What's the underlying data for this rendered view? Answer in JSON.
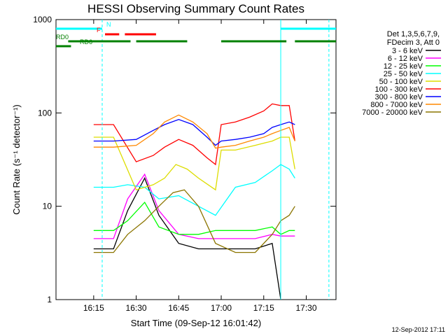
{
  "chart_data": {
    "type": "line",
    "title": "HESSI Observing Summary Count Rates",
    "xlabel": "Start Time (09-Sep-12 16:01:42)",
    "ylabel": "Count Rate (s⁻¹ detector⁻¹)",
    "yscale": "log",
    "ylim": [
      1,
      1000
    ],
    "xlim": [
      "16:01:42",
      "17:40:30"
    ],
    "x_ticks": [
      "16:15",
      "16:30",
      "16:45",
      "17:00",
      "17:15",
      "17:30"
    ],
    "y_ticks": [
      "1",
      "10",
      "100",
      "1000"
    ],
    "grid": false,
    "legend_position": "right",
    "legend_header": [
      "Det 1,3,5,6,7,9,",
      "FDecim 3, Att 0"
    ],
    "footer_timestamp": "12-Sep-2012 17:11",
    "series": [
      {
        "name": "3 - 6 keV",
        "color": "#000000",
        "x": [
          "16:15",
          "16:22",
          "16:27",
          "16:33",
          "16:38",
          "16:45",
          "16:52",
          "16:58",
          "17:05",
          "17:12",
          "17:18",
          "17:21"
        ],
        "values": [
          3.5,
          3.5,
          9,
          20,
          8,
          4,
          3.5,
          3.5,
          3.5,
          3.5,
          4,
          1
        ]
      },
      {
        "name": "6 - 12 keV",
        "color": "#ff00ff",
        "x": [
          "16:15",
          "16:22",
          "16:27",
          "16:33",
          "16:38",
          "16:45",
          "16:52",
          "16:58",
          "17:05",
          "17:12",
          "17:18",
          "17:21",
          "17:24",
          "17:26"
        ],
        "values": [
          4.5,
          4.5,
          12,
          22,
          9,
          5,
          4.5,
          4.5,
          4.5,
          4.5,
          5,
          4.8,
          4.8,
          4.8
        ]
      },
      {
        "name": "12 - 25 keV",
        "color": "#00ff00",
        "x": [
          "16:15",
          "16:22",
          "16:27",
          "16:33",
          "16:38",
          "16:45",
          "16:52",
          "16:58",
          "17:05",
          "17:12",
          "17:18",
          "17:21",
          "17:24",
          "17:26"
        ],
        "values": [
          5.5,
          5.5,
          7,
          11,
          6,
          5,
          5,
          5.5,
          5.5,
          5.5,
          6,
          5,
          5.5,
          5.5
        ]
      },
      {
        "name": "25 - 50 keV",
        "color": "#00ffff",
        "x": [
          "16:15",
          "16:22",
          "16:27",
          "16:33",
          "16:38",
          "16:45",
          "16:52",
          "16:58",
          "17:05",
          "17:12",
          "17:18",
          "17:21",
          "17:24",
          "17:26"
        ],
        "values": [
          16,
          16,
          17,
          16,
          12,
          13,
          10,
          8,
          16,
          18,
          24,
          28,
          25,
          20
        ]
      },
      {
        "name": "50 - 100 keV",
        "color": "#dddd00",
        "x": [
          "16:15",
          "16:22",
          "16:30",
          "16:36",
          "16:40",
          "16:44",
          "16:48",
          "16:52",
          "16:58",
          "17:00",
          "17:05",
          "17:12",
          "17:18",
          "17:21",
          "17:24",
          "17:26"
        ],
        "values": [
          55,
          55,
          15,
          17,
          20,
          28,
          25,
          20,
          15,
          40,
          40,
          45,
          50,
          55,
          55,
          25
        ]
      },
      {
        "name": "100 - 300 keV",
        "color": "#ff0000",
        "x": [
          "16:15",
          "16:22",
          "16:30",
          "16:36",
          "16:40",
          "16:45",
          "16:50",
          "16:55",
          "16:58",
          "17:00",
          "17:05",
          "17:10",
          "17:15",
          "17:18",
          "17:21",
          "17:24",
          "17:26"
        ],
        "values": [
          75,
          75,
          30,
          35,
          43,
          52,
          45,
          33,
          28,
          75,
          80,
          90,
          105,
          125,
          120,
          120,
          50
        ]
      },
      {
        "name": "300 - 800 keV",
        "color": "#0000ff",
        "x": [
          "16:15",
          "16:22",
          "16:30",
          "16:36",
          "16:40",
          "16:45",
          "16:50",
          "16:55",
          "16:58",
          "17:00",
          "17:05",
          "17:10",
          "17:15",
          "17:18",
          "17:21",
          "17:24",
          "17:26"
        ],
        "values": [
          50,
          50,
          52,
          65,
          75,
          85,
          75,
          55,
          45,
          50,
          52,
          55,
          60,
          70,
          75,
          80,
          75
        ]
      },
      {
        "name": "800 - 7000 keV",
        "color": "#ff8800",
        "x": [
          "16:15",
          "16:22",
          "16:30",
          "16:36",
          "16:40",
          "16:45",
          "16:50",
          "16:55",
          "16:58",
          "17:00",
          "17:05",
          "17:10",
          "17:15",
          "17:18",
          "17:21",
          "17:24",
          "17:26"
        ],
        "values": [
          43,
          43,
          45,
          60,
          80,
          95,
          80,
          60,
          42,
          43,
          45,
          50,
          55,
          60,
          65,
          70,
          50
        ]
      },
      {
        "name": "7000 - 20000 keV",
        "color": "#8b7500",
        "x": [
          "16:15",
          "16:22",
          "16:27",
          "16:33",
          "16:38",
          "16:43",
          "16:47",
          "16:52",
          "16:58",
          "17:05",
          "17:12",
          "17:18",
          "17:21",
          "17:24",
          "17:26"
        ],
        "values": [
          3.2,
          3.2,
          5,
          7,
          10,
          14,
          15,
          10,
          4,
          3.2,
          3.2,
          5,
          7,
          8,
          10
        ]
      }
    ],
    "flag_bands": [
      {
        "label": "N",
        "color": "#00ffff",
        "segments": [
          [
            "16:01:42",
            "16:18"
          ],
          [
            "17:21",
            "17:40:30"
          ]
        ]
      },
      {
        "label": "F",
        "color": "#ff0000",
        "segments": [
          [
            "16:19",
            "16:24"
          ],
          [
            "16:26",
            "16:37"
          ]
        ]
      },
      {
        "label": "RD0",
        "color": "#008000",
        "segments": [
          [
            "16:06",
            "16:28"
          ],
          [
            "16:30",
            "16:48"
          ],
          [
            "17:00",
            "17:23"
          ],
          [
            "17:26",
            "17:40:30"
          ]
        ]
      },
      {
        "label": "RD6",
        "color": "#008000",
        "segments": [
          [
            "16:01:42",
            "16:07"
          ]
        ]
      }
    ],
    "vertical_markers": [
      {
        "x": "16:18",
        "color": "#00ffff",
        "style": "dashed"
      },
      {
        "x": "17:21",
        "color": "#00ffff",
        "style": "solid"
      },
      {
        "x": "17:38",
        "color": "#00ffff",
        "style": "dashed"
      }
    ]
  }
}
